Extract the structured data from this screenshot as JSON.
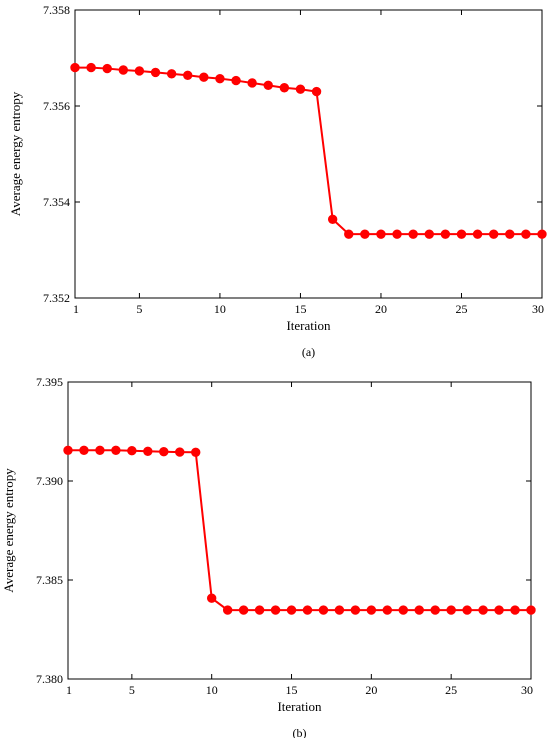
{
  "chart_data": [
    {
      "type": "line",
      "caption": "(a)",
      "xlabel": "Iteration",
      "ylabel": "Average energy entropy",
      "xlim": [
        1,
        30
      ],
      "ylim": [
        7.352,
        7.358
      ],
      "xticks": [
        1,
        5,
        10,
        15,
        20,
        25,
        30
      ],
      "yticks": [
        7.352,
        7.354,
        7.356,
        7.358
      ],
      "ytick_labels": [
        "7.352",
        "7.354",
        "7.356",
        "7.358"
      ],
      "grid": false,
      "marker": "circle",
      "color": "#ff0000",
      "x": [
        1,
        2,
        3,
        4,
        5,
        6,
        7,
        8,
        9,
        10,
        11,
        12,
        13,
        14,
        15,
        16,
        17,
        18,
        19,
        20,
        21,
        22,
        23,
        24,
        25,
        26,
        27,
        28,
        29,
        30
      ],
      "values": [
        7.3568,
        7.3568,
        7.35678,
        7.35675,
        7.35673,
        7.3567,
        7.35667,
        7.35664,
        7.3566,
        7.35657,
        7.35653,
        7.35648,
        7.35643,
        7.35638,
        7.35635,
        7.3563,
        7.35364,
        7.35333,
        7.35333,
        7.35333,
        7.35333,
        7.35333,
        7.35333,
        7.35333,
        7.35333,
        7.35333,
        7.35333,
        7.35333,
        7.35333,
        7.35333
      ]
    },
    {
      "type": "line",
      "caption": "(b)",
      "xlabel": "Iteration",
      "ylabel": "Average energy entropy",
      "xlim": [
        1,
        30
      ],
      "ylim": [
        7.38,
        7.395
      ],
      "xticks": [
        1,
        5,
        10,
        15,
        20,
        25,
        30
      ],
      "yticks": [
        7.38,
        7.385,
        7.39,
        7.395
      ],
      "ytick_labels": [
        "7.380",
        "7.385",
        "7.390",
        "7.395"
      ],
      "grid": false,
      "marker": "circle",
      "color": "#ff0000",
      "x": [
        1,
        2,
        3,
        4,
        5,
        6,
        7,
        8,
        9,
        10,
        11,
        12,
        13,
        14,
        15,
        16,
        17,
        18,
        19,
        20,
        21,
        22,
        23,
        24,
        25,
        26,
        27,
        28,
        29,
        30
      ],
      "values": [
        7.39155,
        7.39155,
        7.39155,
        7.39155,
        7.39153,
        7.3915,
        7.39148,
        7.39146,
        7.39145,
        7.38408,
        7.38348,
        7.38348,
        7.38348,
        7.38348,
        7.38348,
        7.38348,
        7.38348,
        7.38348,
        7.38348,
        7.38348,
        7.38348,
        7.38348,
        7.38348,
        7.38348,
        7.38348,
        7.38348,
        7.38348,
        7.38348,
        7.38348,
        7.38348
      ]
    }
  ]
}
